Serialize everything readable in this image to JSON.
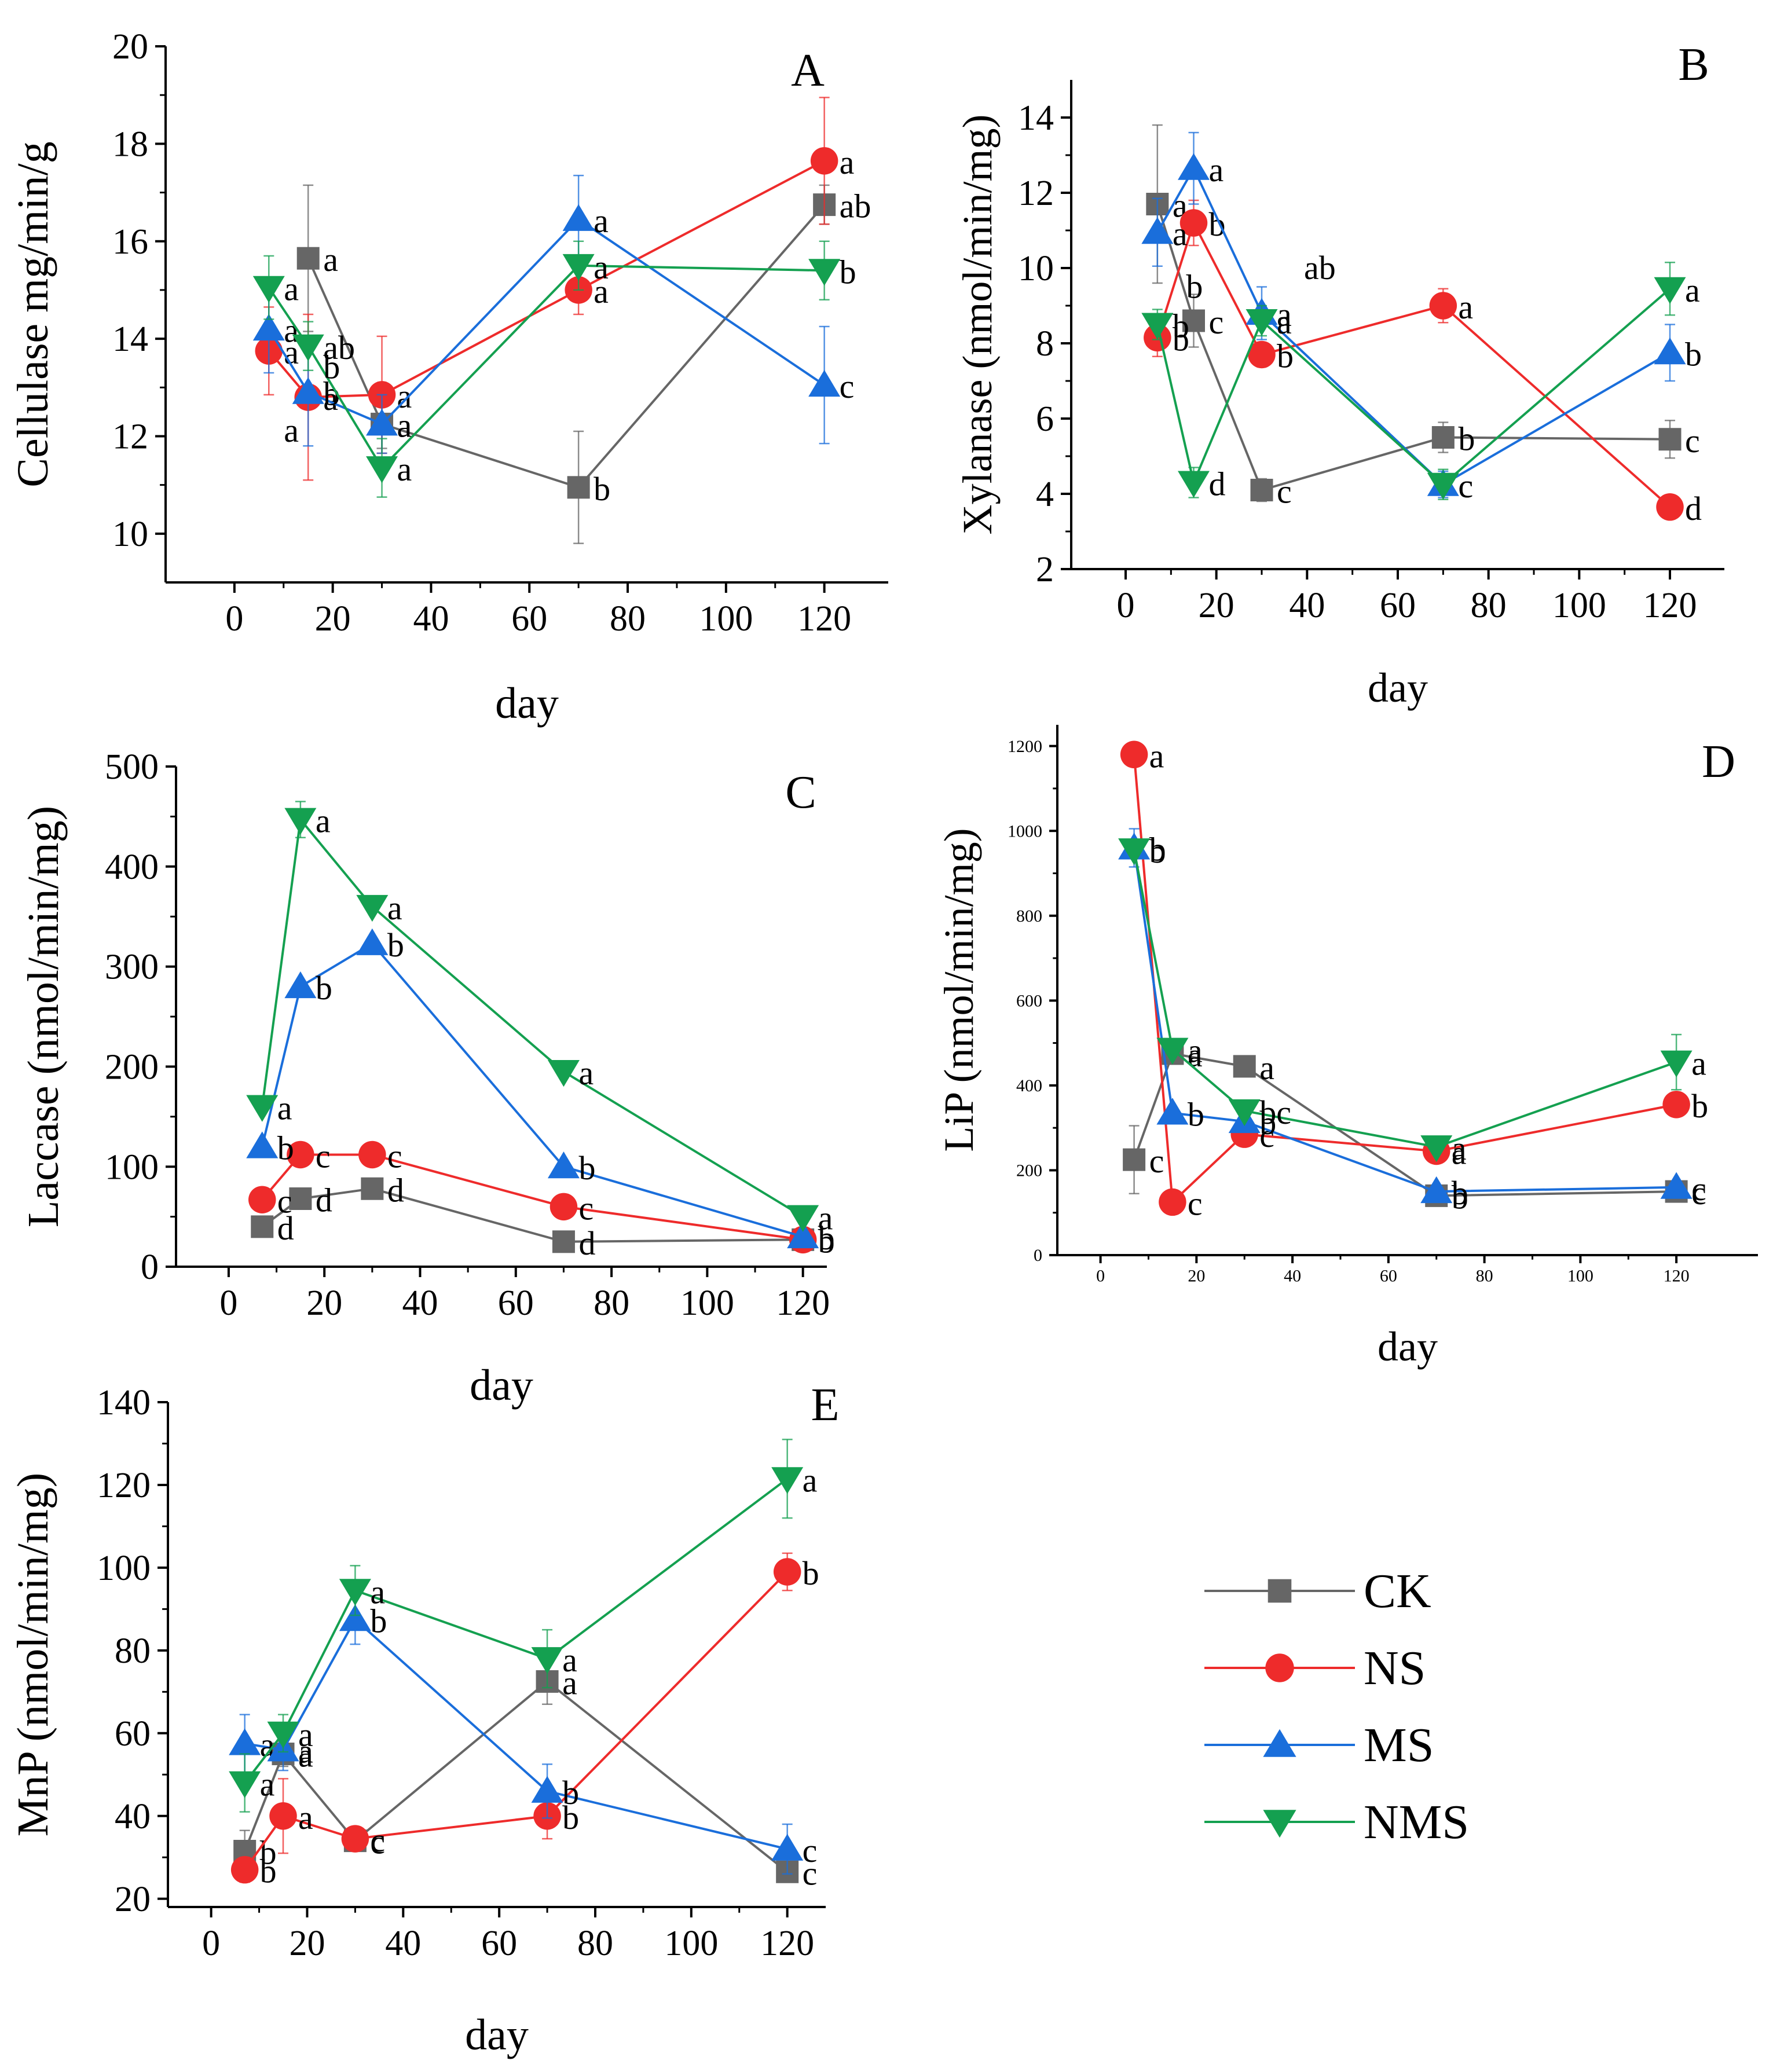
{
  "legend": {
    "position": "bottom-right",
    "items": [
      {
        "name": "CK",
        "color": "#666666",
        "marker": "square"
      },
      {
        "name": "NS",
        "color": "#ee2b2b",
        "marker": "circle"
      },
      {
        "name": "MS",
        "color": "#1a6edb",
        "marker": "triangle-up"
      },
      {
        "name": "NMS",
        "color": "#14a050",
        "marker": "triangle-down"
      }
    ]
  },
  "series_colors": {
    "CK": "#666666",
    "NS": "#ee2b2b",
    "MS": "#1a6edb",
    "NMS": "#14a050"
  },
  "chart_data": [
    {
      "panel": "A",
      "type": "line",
      "xlabel": "day",
      "ylabel": "Cellulase mg/min/g",
      "xlim": [
        -14,
        133
      ],
      "ylim": [
        9,
        20
      ],
      "xticks": [
        0,
        20,
        40,
        60,
        80,
        100,
        120
      ],
      "yticks": [
        10,
        12,
        14,
        16,
        18,
        20
      ],
      "x": [
        7,
        15,
        30,
        70,
        120
      ],
      "series": [
        {
          "name": "CK",
          "values": [
            null,
            15.65,
            12.25,
            10.95,
            16.75
          ],
          "errors": [
            null,
            1.5,
            0.5,
            1.15,
            0.4
          ],
          "letters": [
            null,
            "a",
            "a",
            "b",
            "ab"
          ]
        },
        {
          "name": "NS",
          "values": [
            13.75,
            12.8,
            12.85,
            15.0,
            17.65
          ],
          "errors": [
            0.9,
            1.7,
            1.2,
            0.5,
            1.3
          ],
          "letters": [
            "a",
            "a",
            "a",
            "a",
            "a"
          ]
        },
        {
          "name": "MS",
          "values": [
            14.2,
            12.9,
            12.25,
            16.45,
            13.05
          ],
          "errors": [
            0.9,
            1.1,
            0.6,
            0.9,
            1.2
          ],
          "letters": [
            "a",
            "b",
            "a",
            "a",
            "c"
          ]
        },
        {
          "name": "NMS",
          "values": [
            15.05,
            13.85,
            11.35,
            15.5,
            15.4
          ],
          "errors": [
            0.65,
            0.5,
            0.6,
            0.5,
            0.6
          ],
          "letters": [
            "a",
            "ab",
            "a",
            "a",
            "b"
          ]
        }
      ],
      "extra_labels": [
        {
          "text": "b",
          "x": 15,
          "y": 13.45
        },
        {
          "text": "a",
          "x": 7,
          "y": 12.15
        }
      ]
    },
    {
      "panel": "B",
      "type": "line",
      "xlabel": "day",
      "ylabel": "Xylanase (nmol/min/mg)",
      "xlim": [
        -12,
        132
      ],
      "ylim": [
        2,
        15
      ],
      "xticks": [
        0,
        20,
        40,
        60,
        80,
        100,
        120
      ],
      "yticks": [
        2,
        4,
        6,
        8,
        10,
        12,
        14
      ],
      "x": [
        7,
        15,
        30,
        70,
        120
      ],
      "series": [
        {
          "name": "CK",
          "values": [
            11.7,
            8.6,
            4.1,
            5.5,
            5.45
          ],
          "errors": [
            2.1,
            0.7,
            0.3,
            0.4,
            0.5
          ],
          "letters": [
            "a",
            "c",
            "c",
            "b",
            "c"
          ]
        },
        {
          "name": "NS",
          "values": [
            8.15,
            11.2,
            7.7,
            9.0,
            3.65
          ],
          "errors": [
            0.5,
            0.6,
            0.3,
            0.45,
            0.2
          ],
          "letters": [
            "b",
            "b",
            "b",
            "a",
            "d"
          ]
        },
        {
          "name": "MS",
          "values": [
            10.95,
            12.65,
            8.8,
            4.25,
            7.75
          ],
          "errors": [
            0.9,
            0.95,
            0.7,
            0.35,
            0.75
          ],
          "letters": [
            "a",
            "a",
            "a",
            "c",
            "b"
          ]
        },
        {
          "name": "NMS",
          "values": [
            8.5,
            4.3,
            8.6,
            4.25,
            9.45
          ],
          "errors": [
            0.4,
            0.4,
            0.4,
            0.4,
            0.7
          ],
          "letters": [
            "b",
            "d",
            "a",
            "c",
            "a"
          ]
        }
      ],
      "extra_labels": [
        {
          "text": "b",
          "x": 10,
          "y": 9.55
        },
        {
          "text": "ab",
          "x": 36,
          "y": 10.05
        }
      ]
    },
    {
      "panel": "C",
      "type": "line",
      "xlabel": "day",
      "ylabel": "Laccase (nmol/min/mg)",
      "xlim": [
        -11,
        125
      ],
      "ylim": [
        0,
        500
      ],
      "xticks": [
        0,
        20,
        40,
        60,
        80,
        100,
        120
      ],
      "yticks": [
        0,
        100,
        200,
        300,
        400,
        500
      ],
      "x": [
        7,
        15,
        30,
        70,
        120
      ],
      "series": [
        {
          "name": "CK",
          "values": [
            40,
            68,
            78,
            25,
            27
          ],
          "errors": [
            null,
            null,
            null,
            null,
            null
          ],
          "letters": [
            "d",
            "d",
            "d",
            "d",
            "b"
          ]
        },
        {
          "name": "NS",
          "values": [
            67,
            112,
            112,
            60,
            27
          ],
          "errors": [
            null,
            null,
            null,
            null,
            null
          ],
          "letters": [
            "c",
            "c",
            "c",
            "c",
            "b"
          ]
        },
        {
          "name": "MS",
          "values": [
            120,
            280,
            323,
            100,
            30
          ],
          "errors": [
            null,
            null,
            null,
            null,
            null
          ],
          "letters": [
            "b",
            "b",
            "b",
            "b",
            "b"
          ]
        },
        {
          "name": "NMS",
          "values": [
            160,
            447,
            360,
            195,
            50
          ],
          "errors": [
            null,
            18,
            null,
            null,
            null
          ],
          "letters": [
            "a",
            "a",
            "a",
            "a",
            "a"
          ]
        }
      ],
      "extra_labels": []
    },
    {
      "panel": "D",
      "type": "line",
      "xlabel": "day",
      "ylabel": "LiP (nmol/min/mg)",
      "xlim": [
        -9,
        137
      ],
      "ylim": [
        0,
        1250
      ],
      "xticks": [
        0,
        20,
        40,
        60,
        80,
        100,
        120
      ],
      "yticks": [
        0,
        200,
        400,
        600,
        800,
        1000,
        1200
      ],
      "x": [
        7,
        15,
        30,
        70,
        120
      ],
      "series": [
        {
          "name": "CK",
          "values": [
            225,
            475,
            445,
            140,
            150
          ],
          "errors": [
            80,
            null,
            null,
            null,
            null
          ],
          "letters": [
            "c",
            "a",
            "a",
            "b",
            "c"
          ]
        },
        {
          "name": "NS",
          "values": [
            1180,
            125,
            285,
            245,
            355
          ],
          "errors": [
            null,
            null,
            null,
            null,
            null
          ],
          "letters": [
            "a",
            "c",
            "c",
            "a",
            "b"
          ]
        },
        {
          "name": "MS",
          "values": [
            960,
            335,
            315,
            150,
            160
          ],
          "errors": [
            45,
            null,
            null,
            null,
            null
          ],
          "letters": [
            "b",
            "b",
            "b",
            "b",
            "c"
          ]
        },
        {
          "name": "NMS",
          "values": [
            955,
            485,
            340,
            255,
            455
          ],
          "errors": [
            null,
            null,
            null,
            null,
            65
          ],
          "letters": [
            "b",
            "a",
            "bc",
            "a",
            "a"
          ]
        }
      ],
      "extra_labels": []
    },
    {
      "panel": "E",
      "type": "line",
      "xlabel": "day",
      "ylabel": "MnP (nmol/min/mg)",
      "xlim": [
        -9,
        128
      ],
      "ylim": [
        18,
        140
      ],
      "xticks": [
        0,
        20,
        40,
        60,
        80,
        100,
        120
      ],
      "yticks": [
        20,
        40,
        60,
        80,
        100,
        120,
        140
      ],
      "x": [
        7,
        15,
        30,
        70,
        120
      ],
      "series": [
        {
          "name": "CK",
          "values": [
            31.5,
            55,
            34,
            72.5,
            26.5
          ],
          "errors": [
            5,
            3,
            2,
            5.5,
            2
          ],
          "letters": [
            "b",
            "a",
            "c",
            "a",
            "c"
          ]
        },
        {
          "name": "NS",
          "values": [
            27,
            40,
            34.5,
            40,
            99
          ],
          "errors": [
            3,
            9,
            2,
            5.5,
            4.5
          ],
          "letters": [
            "b",
            "a",
            "c",
            "b",
            "b"
          ]
        },
        {
          "name": "MS",
          "values": [
            57.5,
            56,
            87.5,
            46,
            32
          ],
          "errors": [
            7,
            5,
            6,
            6.5,
            6
          ],
          "letters": [
            "a",
            "a",
            "b",
            "b",
            "c"
          ]
        },
        {
          "name": "NMS",
          "values": [
            48,
            60,
            94.5,
            78,
            121.5
          ],
          "errors": [
            7,
            4.5,
            6,
            7,
            9.5
          ],
          "letters": [
            "a",
            "a",
            "a",
            "a",
            "a"
          ]
        }
      ],
      "extra_labels": []
    }
  ]
}
